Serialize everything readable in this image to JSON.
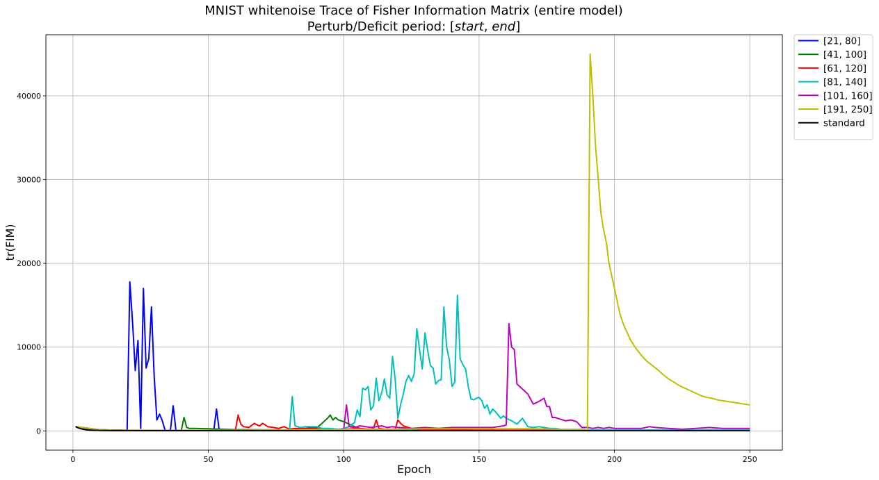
{
  "chart_data": {
    "type": "line",
    "title_line1": "MNIST whitenoise Trace of Fisher Information Matrix (entire model)",
    "title_line2_prefix": "Perturb/Deficit period: [",
    "title_line2_start": "start",
    "title_line2_sep": ", ",
    "title_line2_end": "end",
    "title_line2_suffix": "]",
    "xlabel": "Epoch",
    "ylabel": "tr(FIM)",
    "xlim": [
      -10,
      262
    ],
    "ylim": [
      -2300,
      47300
    ],
    "x_ticks": [
      0,
      50,
      100,
      150,
      200,
      250
    ],
    "y_ticks": [
      0,
      10000,
      20000,
      30000,
      40000
    ],
    "grid": true,
    "legend_position": "outside-top-right",
    "series": [
      {
        "name": "[21, 80]",
        "color": "#0000ff",
        "x": [
          1,
          2,
          3,
          4,
          5,
          6,
          7,
          8,
          9,
          10,
          11,
          12,
          13,
          14,
          15,
          16,
          17,
          18,
          19,
          20,
          21,
          22,
          23,
          24,
          25,
          26,
          27,
          28,
          29,
          30,
          31,
          32,
          33,
          34,
          35,
          36,
          37,
          38,
          39,
          40,
          45,
          50,
          51,
          52,
          53,
          54,
          55,
          60,
          70,
          80,
          90,
          100
        ],
        "y": [
          500,
          400,
          300,
          250,
          200,
          150,
          120,
          100,
          80,
          60,
          50,
          40,
          30,
          30,
          30,
          30,
          30,
          30,
          30,
          40,
          17800,
          13000,
          7200,
          10800,
          300,
          17000,
          7500,
          8600,
          14800,
          6500,
          1300,
          2000,
          1200,
          100,
          50,
          100,
          3000,
          100,
          50,
          40,
          40,
          30,
          40,
          50,
          2600,
          100,
          60,
          40,
          40,
          60,
          40,
          30
        ]
      },
      {
        "name": "[41, 100]",
        "color": "#008000",
        "x": [
          1,
          10,
          20,
          30,
          40,
          41,
          42,
          43,
          45,
          50,
          55,
          60,
          65,
          70,
          75,
          80,
          85,
          88,
          90,
          92,
          94,
          95,
          96,
          97,
          98,
          100,
          102,
          104,
          106,
          110,
          120,
          130,
          140,
          150,
          160,
          170,
          180,
          190,
          200,
          210,
          220,
          230,
          240,
          250
        ],
        "y": [
          500,
          120,
          60,
          50,
          50,
          1600,
          400,
          300,
          300,
          250,
          200,
          150,
          150,
          120,
          120,
          100,
          250,
          400,
          350,
          900,
          1500,
          1900,
          1300,
          1600,
          1300,
          1100,
          800,
          500,
          300,
          150,
          100,
          80,
          70,
          60,
          60,
          60,
          60,
          60,
          60,
          60,
          60,
          60,
          60,
          60
        ]
      },
      {
        "name": "[61, 120]",
        "color": "#ff0000",
        "x": [
          1,
          10,
          20,
          30,
          40,
          50,
          60,
          61,
          62,
          63,
          65,
          67,
          68,
          69,
          70,
          72,
          74,
          76,
          78,
          80,
          82,
          85,
          90,
          95,
          100,
          105,
          110,
          111,
          112,
          113,
          115,
          118,
          119,
          120,
          121,
          122,
          125,
          130,
          140,
          150,
          160,
          170,
          180,
          190,
          200,
          210,
          220,
          230,
          240,
          250
        ],
        "y": [
          500,
          120,
          60,
          50,
          50,
          60,
          60,
          1900,
          800,
          500,
          400,
          900,
          700,
          600,
          900,
          500,
          400,
          300,
          500,
          200,
          300,
          300,
          250,
          200,
          200,
          300,
          200,
          300,
          1300,
          300,
          200,
          200,
          200,
          1300,
          900,
          600,
          300,
          150,
          120,
          100,
          100,
          90,
          80,
          80,
          80,
          80,
          80,
          80,
          80,
          80
        ]
      },
      {
        "name": "[81, 140]",
        "color": "#00bfbf",
        "x": [
          1,
          10,
          20,
          30,
          40,
          50,
          60,
          70,
          80,
          81,
          82,
          84,
          86,
          88,
          90,
          92,
          95,
          98,
          100,
          102,
          104,
          105,
          106,
          107,
          108,
          109,
          110,
          111,
          112,
          113,
          114,
          115,
          116,
          117,
          118,
          119,
          120,
          121,
          122,
          123,
          124,
          125,
          126,
          127,
          128,
          129,
          130,
          131,
          132,
          133,
          134,
          135,
          136,
          137,
          138,
          139,
          140,
          141,
          142,
          143,
          144,
          145,
          146,
          147,
          148,
          149,
          150,
          151,
          152,
          153,
          154,
          155,
          156,
          157,
          158,
          159,
          160,
          162,
          164,
          166,
          168,
          170,
          172,
          174,
          176,
          178,
          180,
          185,
          190,
          200,
          210,
          220,
          230,
          240,
          250
        ],
        "y": [
          500,
          120,
          60,
          50,
          50,
          60,
          60,
          80,
          100,
          4100,
          600,
          400,
          500,
          500,
          500,
          300,
          300,
          200,
          300,
          500,
          1000,
          2500,
          1700,
          5100,
          4900,
          5300,
          2500,
          3000,
          6300,
          3600,
          4500,
          6200,
          4300,
          3900,
          8900,
          6200,
          1500,
          3100,
          4400,
          5900,
          6600,
          5900,
          6800,
          12200,
          9700,
          7400,
          11700,
          9600,
          7800,
          7500,
          5600,
          6000,
          6100,
          14800,
          10000,
          8500,
          5300,
          5800,
          16200,
          8600,
          7900,
          7400,
          5300,
          3800,
          3700,
          3900,
          4000,
          3600,
          2700,
          3100,
          2000,
          2600,
          2300,
          1900,
          1500,
          1800,
          1500,
          1200,
          800,
          1500,
          500,
          400,
          500,
          400,
          300,
          300,
          200,
          150,
          100,
          100,
          100,
          100,
          100,
          100,
          100
        ]
      },
      {
        "name": "[101, 160]",
        "color": "#bf00bf",
        "x": [
          1,
          10,
          20,
          30,
          40,
          50,
          60,
          70,
          80,
          90,
          100,
          101,
          102,
          104,
          106,
          108,
          110,
          112,
          114,
          116,
          118,
          120,
          125,
          130,
          135,
          140,
          145,
          150,
          155,
          159,
          160,
          161,
          162,
          163,
          164,
          166,
          168,
          170,
          172,
          174,
          175,
          176,
          177,
          178,
          180,
          182,
          184,
          186,
          188,
          190,
          192,
          194,
          196,
          198,
          200,
          205,
          210,
          213,
          215,
          220,
          225,
          230,
          235,
          240,
          245,
          250
        ],
        "y": [
          500,
          120,
          60,
          50,
          50,
          60,
          60,
          80,
          100,
          150,
          200,
          3100,
          500,
          400,
          600,
          500,
          400,
          500,
          600,
          400,
          500,
          400,
          300,
          400,
          300,
          400,
          400,
          400,
          400,
          600,
          700,
          12800,
          10000,
          9700,
          5600,
          5000,
          4400,
          3200,
          3500,
          3900,
          2900,
          2900,
          1600,
          1600,
          1400,
          1200,
          1300,
          1100,
          400,
          400,
          300,
          400,
          300,
          400,
          300,
          300,
          300,
          500,
          400,
          300,
          200,
          300,
          400,
          300,
          300,
          300
        ]
      },
      {
        "name": "[191, 250]",
        "color": "#bfbf00",
        "x": [
          1,
          10,
          20,
          30,
          40,
          50,
          60,
          70,
          80,
          90,
          100,
          110,
          120,
          130,
          140,
          150,
          160,
          170,
          180,
          185,
          189,
          190,
          191,
          192,
          193,
          194,
          195,
          196,
          197,
          198,
          199,
          200,
          201,
          202,
          203,
          204,
          205,
          206,
          207,
          208,
          209,
          210,
          212,
          214,
          216,
          218,
          220,
          222,
          224,
          226,
          228,
          230,
          232,
          234,
          236,
          238,
          240,
          242,
          244,
          246,
          248,
          250
        ],
        "y": [
          500,
          120,
          60,
          50,
          50,
          60,
          60,
          80,
          100,
          150,
          200,
          200,
          200,
          250,
          250,
          250,
          250,
          250,
          200,
          200,
          200,
          100,
          45000,
          40000,
          34000,
          30000,
          26000,
          24000,
          22500,
          20000,
          18500,
          17000,
          15500,
          14000,
          13000,
          12200,
          11500,
          10800,
          10300,
          9800,
          9400,
          9000,
          8300,
          7800,
          7300,
          6700,
          6200,
          5800,
          5400,
          5100,
          4800,
          4500,
          4200,
          4000,
          3900,
          3700,
          3600,
          3500,
          3400,
          3300,
          3200,
          3100
        ]
      },
      {
        "name": "standard",
        "color": "#000000",
        "x": [
          1,
          2,
          3,
          4,
          5,
          6,
          8,
          10,
          12,
          15,
          20,
          30,
          40,
          50,
          60,
          70,
          80,
          90,
          100,
          110,
          120,
          130,
          140,
          150,
          160,
          170,
          180,
          190,
          200,
          210,
          220,
          230,
          240,
          250
        ],
        "y": [
          500,
          350,
          250,
          180,
          120,
          80,
          60,
          50,
          40,
          30,
          30,
          20,
          20,
          20,
          20,
          20,
          20,
          20,
          20,
          20,
          20,
          20,
          20,
          20,
          20,
          20,
          20,
          20,
          20,
          20,
          20,
          20,
          20,
          20
        ]
      }
    ]
  }
}
